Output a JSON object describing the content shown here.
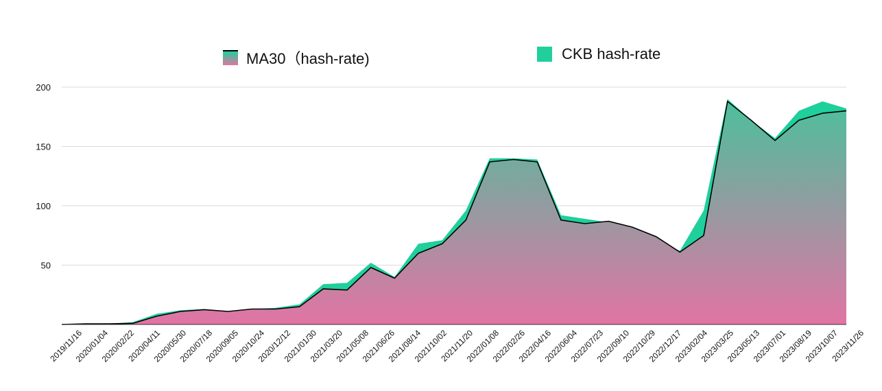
{
  "legend": {
    "ma_label": "MA30（hash-rate)",
    "ckb_label": "CKB hash-rate"
  },
  "colors": {
    "ckb": "#1fcf9c",
    "ma_top": "#4cbf9c",
    "ma_bottom": "#e274a4",
    "ma_line": "#000000",
    "grid": "#d9d9d9"
  },
  "chart_data": {
    "type": "area",
    "title": "",
    "xlabel": "",
    "ylabel": "",
    "ylim": [
      0,
      200
    ],
    "yticks": [
      50,
      100,
      150,
      200
    ],
    "grid": true,
    "legend_position": "top",
    "x_tick_labels": [
      "2019/11/16",
      "2020/01/04",
      "2020/02/22",
      "2020/04/11",
      "2020/05/30",
      "2020/07/18",
      "2020/09/05",
      "2020/10/24",
      "2020/12/12",
      "2021/01/30",
      "2021/03/20",
      "2021/05/08",
      "2021/06/26",
      "2021/08/14",
      "2021/10/02",
      "2021/11/20",
      "2022/01/08",
      "2022/02/26",
      "2022/04/16",
      "2022/06/04",
      "2022/07/23",
      "2022/09/10",
      "2022/10/29",
      "2022/12/17",
      "2023/02/04",
      "2023/03/25",
      "2023/05/13",
      "2023/07/01",
      "2023/08/19",
      "2023/10/07",
      "2023/11/26"
    ],
    "series": [
      {
        "name": "CKB hash-rate",
        "values": [
          0,
          0.5,
          0.5,
          2,
          9,
          12,
          13,
          11,
          13,
          14,
          17,
          34,
          35,
          52,
          40,
          68,
          71,
          96,
          140,
          140,
          139,
          92,
          89,
          86,
          80,
          72,
          62,
          96,
          190,
          172,
          157,
          180,
          188,
          182
        ]
      },
      {
        "name": "MA30（hash-rate)",
        "values": [
          0,
          0.5,
          0.5,
          1,
          7,
          11,
          12.5,
          11,
          13,
          13,
          15,
          30,
          29,
          48,
          39,
          60,
          68,
          88,
          137,
          139,
          137,
          88,
          85,
          87,
          82,
          74,
          61,
          75,
          188,
          172,
          155,
          172,
          178,
          180
        ]
      }
    ]
  }
}
